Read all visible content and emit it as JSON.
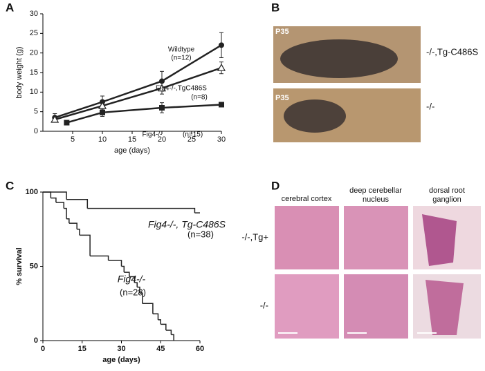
{
  "panels": {
    "letters": [
      "A",
      "B",
      "C",
      "D"
    ],
    "photos": {
      "stage_labels": [
        "P35",
        "P35"
      ],
      "genotypes": [
        "-/-,Tg-C486S",
        "-/-"
      ]
    },
    "histology": {
      "columns": [
        "cerebral cortex",
        "deep cerebellar\nnucleus",
        "dorsal root\nganglion"
      ],
      "rows": [
        "-/-,Tg+",
        "-/-"
      ]
    }
  },
  "chart_data": [
    {
      "type": "line",
      "xlabel": "age (days)",
      "ylabel": "body weight (g)",
      "xlim": [
        0,
        30
      ],
      "ylim": [
        0,
        30
      ],
      "xticks": [
        5,
        10,
        15,
        20,
        25,
        30
      ],
      "yticks": [
        0,
        5,
        10,
        15,
        20,
        25,
        30
      ],
      "series": [
        {
          "name": "Wildtype",
          "n_label": "(n=12)",
          "marker": "circle",
          "color": "#222222",
          "x": [
            2,
            10,
            20,
            30
          ],
          "values": [
            3.5,
            7.5,
            12.8,
            22
          ],
          "errors": [
            1,
            1.5,
            2.5,
            3.2
          ]
        },
        {
          "name": "Fig4-/-,TgC486S",
          "n_label": "(n=8)",
          "marker": "triangle",
          "color": "#222222",
          "x": [
            2,
            10,
            20,
            30
          ],
          "values": [
            3,
            6.5,
            11,
            16.2
          ],
          "errors": [
            0.5,
            1,
            1.5,
            1.5
          ]
        },
        {
          "name": "Fig4-/-",
          "n_label": "(n=15)",
          "marker": "square",
          "color": "#222222",
          "x": [
            4,
            10,
            20,
            30
          ],
          "values": [
            2.2,
            4.8,
            6,
            6.8
          ],
          "errors": [
            0.3,
            1,
            1.3,
            0.5
          ]
        }
      ]
    },
    {
      "type": "step",
      "xlabel": "age (days)",
      "ylabel": "% survival",
      "xlim": [
        0,
        60
      ],
      "ylim": [
        0,
        100
      ],
      "xticks": [
        0,
        15,
        30,
        45,
        60
      ],
      "yticks": [
        0,
        50,
        100
      ],
      "series": [
        {
          "name": "Fig4-/-, Tg-C486S",
          "n_label": "(n=38)",
          "color": "#222222",
          "x": [
            0,
            9,
            17,
            58,
            60
          ],
          "values": [
            100,
            95,
            89,
            86,
            86
          ]
        },
        {
          "name": "Fig4-/-",
          "n_label": "(n=28)",
          "color": "#222222",
          "x": [
            0,
            3,
            5,
            8,
            9,
            10,
            13,
            14,
            18,
            25,
            30,
            31,
            33,
            35,
            36,
            37,
            38,
            42,
            44,
            45,
            47,
            49,
            50
          ],
          "values": [
            100,
            96,
            93,
            89,
            82,
            79,
            75,
            71,
            57,
            54,
            50,
            46,
            43,
            39,
            36,
            32,
            25,
            18,
            14,
            11,
            7,
            4,
            0
          ]
        }
      ]
    }
  ]
}
